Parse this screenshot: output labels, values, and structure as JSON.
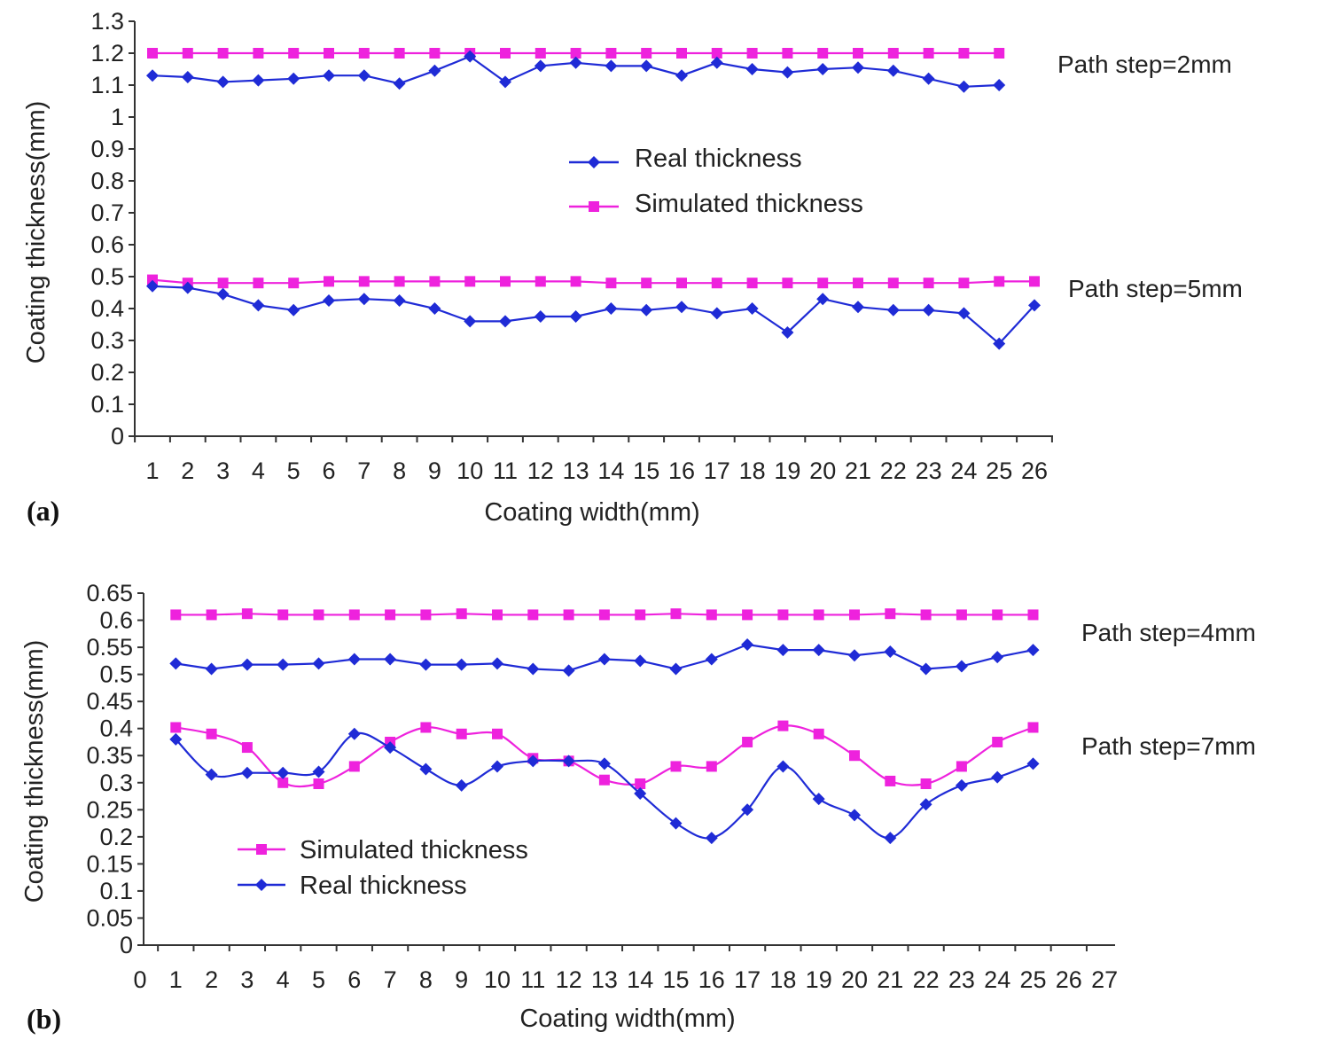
{
  "colors": {
    "real": "#1f2bd6",
    "simulated": "#ee22dd",
    "axis": "#333333"
  },
  "chart_data": [
    {
      "type": "line",
      "panel_label": "(a)",
      "xlabel": "Coating width(mm)",
      "ylabel": "Coating thickness(mm)",
      "x_ticks": [
        1,
        2,
        3,
        4,
        5,
        6,
        7,
        8,
        9,
        10,
        11,
        12,
        13,
        14,
        15,
        16,
        17,
        18,
        19,
        20,
        21,
        22,
        23,
        24,
        25,
        26
      ],
      "y_ticks": [
        "0",
        "0.1",
        "0.2",
        "0.3",
        "0.4",
        "0.5",
        "0.6",
        "0.7",
        "0.8",
        "0.9",
        "1",
        "1.1",
        "1.2",
        "1.3"
      ],
      "ylim": [
        0,
        1.3
      ],
      "legend": {
        "position": "center",
        "entries": [
          "Real thickness",
          "Simulated thickness"
        ]
      },
      "annotations": [
        "Path step=2mm",
        "Path step=5mm"
      ],
      "series": [
        {
          "name": "Simulated thickness",
          "group": "Path step=2mm",
          "marker": "square",
          "x": [
            1,
            2,
            3,
            4,
            5,
            6,
            7,
            8,
            9,
            10,
            11,
            12,
            13,
            14,
            15,
            16,
            17,
            18,
            19,
            20,
            21,
            22,
            23,
            24,
            25
          ],
          "values": [
            1.2,
            1.2,
            1.2,
            1.2,
            1.2,
            1.2,
            1.2,
            1.2,
            1.2,
            1.2,
            1.2,
            1.2,
            1.2,
            1.2,
            1.2,
            1.2,
            1.2,
            1.2,
            1.2,
            1.2,
            1.2,
            1.2,
            1.2,
            1.2,
            1.2
          ]
        },
        {
          "name": "Real thickness",
          "group": "Path step=2mm",
          "marker": "diamond",
          "x": [
            1,
            2,
            3,
            4,
            5,
            6,
            7,
            8,
            9,
            10,
            11,
            12,
            13,
            14,
            15,
            16,
            17,
            18,
            19,
            20,
            21,
            22,
            23,
            24,
            25
          ],
          "values": [
            1.13,
            1.125,
            1.11,
            1.115,
            1.12,
            1.13,
            1.13,
            1.105,
            1.145,
            1.19,
            1.11,
            1.16,
            1.17,
            1.16,
            1.16,
            1.13,
            1.17,
            1.15,
            1.14,
            1.15,
            1.155,
            1.145,
            1.12,
            1.095,
            1.1
          ]
        },
        {
          "name": "Simulated thickness",
          "group": "Path step=5mm",
          "marker": "square",
          "x": [
            1,
            2,
            3,
            4,
            5,
            6,
            7,
            8,
            9,
            10,
            11,
            12,
            13,
            14,
            15,
            16,
            17,
            18,
            19,
            20,
            21,
            22,
            23,
            24,
            25,
            26
          ],
          "values": [
            0.49,
            0.48,
            0.48,
            0.48,
            0.48,
            0.485,
            0.485,
            0.485,
            0.485,
            0.485,
            0.485,
            0.485,
            0.485,
            0.48,
            0.48,
            0.48,
            0.48,
            0.48,
            0.48,
            0.48,
            0.48,
            0.48,
            0.48,
            0.48,
            0.485,
            0.485
          ]
        },
        {
          "name": "Real thickness",
          "group": "Path step=5mm",
          "marker": "diamond",
          "x": [
            1,
            2,
            3,
            4,
            5,
            6,
            7,
            8,
            9,
            10,
            11,
            12,
            13,
            14,
            15,
            16,
            17,
            18,
            19,
            20,
            21,
            22,
            23,
            24,
            25,
            26
          ],
          "values": [
            0.47,
            0.465,
            0.445,
            0.41,
            0.395,
            0.425,
            0.43,
            0.425,
            0.4,
            0.36,
            0.36,
            0.375,
            0.375,
            0.4,
            0.395,
            0.405,
            0.385,
            0.4,
            0.325,
            0.43,
            0.405,
            0.395,
            0.395,
            0.385,
            0.29,
            0.41
          ]
        }
      ]
    },
    {
      "type": "line",
      "panel_label": "(b)",
      "xlabel": "Coating width(mm)",
      "ylabel": "Coating thickness(mm)",
      "x_ticks": [
        0,
        1,
        2,
        3,
        4,
        5,
        6,
        7,
        8,
        9,
        10,
        11,
        12,
        13,
        14,
        15,
        16,
        17,
        18,
        19,
        20,
        21,
        22,
        23,
        24,
        25,
        26,
        27
      ],
      "y_ticks": [
        "0",
        "0.05",
        "0.1",
        "0.15",
        "0.2",
        "0.25",
        "0.3",
        "0.35",
        "0.4",
        "0.45",
        "0.5",
        "0.55",
        "0.6",
        "0.65"
      ],
      "ylim": [
        0,
        0.65
      ],
      "legend": {
        "position": "bottom-left",
        "entries": [
          "Simulated thickness",
          "Real thickness"
        ]
      },
      "annotations": [
        "Path step=4mm",
        "Path step=7mm"
      ],
      "series": [
        {
          "name": "Simulated thickness",
          "group": "Path step=4mm",
          "marker": "square",
          "x": [
            1,
            2,
            3,
            4,
            5,
            6,
            7,
            8,
            9,
            10,
            11,
            12,
            13,
            14,
            15,
            16,
            17,
            18,
            19,
            20,
            21,
            22,
            23,
            24,
            25
          ],
          "values": [
            0.61,
            0.61,
            0.612,
            0.61,
            0.61,
            0.61,
            0.61,
            0.61,
            0.612,
            0.61,
            0.61,
            0.61,
            0.61,
            0.61,
            0.612,
            0.61,
            0.61,
            0.61,
            0.61,
            0.61,
            0.612,
            0.61,
            0.61,
            0.61,
            0.61
          ]
        },
        {
          "name": "Real thickness",
          "group": "Path step=4mm",
          "marker": "diamond",
          "x": [
            1,
            2,
            3,
            4,
            5,
            6,
            7,
            8,
            9,
            10,
            11,
            12,
            13,
            14,
            15,
            16,
            17,
            18,
            19,
            20,
            21,
            22,
            23,
            24,
            25
          ],
          "values": [
            0.52,
            0.51,
            0.518,
            0.518,
            0.52,
            0.528,
            0.528,
            0.518,
            0.518,
            0.52,
            0.51,
            0.507,
            0.528,
            0.525,
            0.51,
            0.528,
            0.555,
            0.545,
            0.545,
            0.535,
            0.542,
            0.51,
            0.515,
            0.532,
            0.545
          ]
        },
        {
          "name": "Simulated thickness",
          "group": "Path step=7mm",
          "marker": "square",
          "x": [
            1,
            2,
            3,
            4,
            5,
            6,
            7,
            8,
            9,
            10,
            11,
            12,
            13,
            14,
            15,
            16,
            17,
            18,
            19,
            20,
            21,
            22,
            23,
            24,
            25
          ],
          "values": [
            0.402,
            0.39,
            0.365,
            0.3,
            0.298,
            0.33,
            0.375,
            0.402,
            0.39,
            0.39,
            0.345,
            0.34,
            0.305,
            0.298,
            0.33,
            0.33,
            0.375,
            0.405,
            0.39,
            0.35,
            0.303,
            0.298,
            0.33,
            0.375,
            0.402
          ]
        },
        {
          "name": "Real thickness",
          "group": "Path step=7mm",
          "marker": "diamond",
          "x": [
            1,
            2,
            3,
            4,
            5,
            6,
            7,
            8,
            9,
            10,
            11,
            12,
            13,
            14,
            15,
            16,
            17,
            18,
            19,
            20,
            21,
            22,
            23,
            24,
            25
          ],
          "values": [
            0.38,
            0.315,
            0.318,
            0.318,
            0.32,
            0.39,
            0.365,
            0.325,
            0.295,
            0.33,
            0.34,
            0.34,
            0.335,
            0.28,
            0.225,
            0.198,
            0.25,
            0.33,
            0.27,
            0.24,
            0.198,
            0.26,
            0.295,
            0.31,
            0.335
          ]
        }
      ]
    }
  ]
}
